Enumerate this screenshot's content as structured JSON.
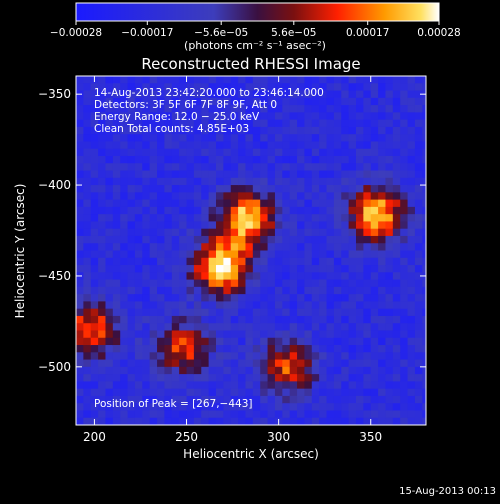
{
  "colorbar": {
    "tick_labels": [
      "−0.00028",
      "−0.00017",
      "−5.6e−05",
      "5.6e−05",
      "0.00017",
      "0.00028"
    ],
    "tick_values": [
      -0.00028,
      -0.00017,
      -5.6e-05,
      5.6e-05,
      0.00017,
      0.00028
    ],
    "range": [
      -0.00028,
      0.00028
    ],
    "units": "(photons cm⁻² s⁻¹ asec⁻²)"
  },
  "chart_data": {
    "type": "heatmap",
    "title": "Reconstructed RHESSI Image",
    "xlabel": "Heliocentric X (arcsec)",
    "ylabel": "Heliocentric Y (arcsec)",
    "xlim": [
      190,
      380
    ],
    "ylim": [
      -532,
      -340
    ],
    "x_ticks": [
      200,
      250,
      300,
      350
    ],
    "y_ticks": [
      -350,
      -400,
      -450,
      -500
    ],
    "x_tick_labels": [
      "200",
      "250",
      "300",
      "350"
    ],
    "y_tick_labels": [
      "−350",
      "−400",
      "−450",
      "−500"
    ],
    "sources": [
      {
        "x": 267,
        "y": -443,
        "peak": 0.00028
      },
      {
        "x": 281,
        "y": -416,
        "peak": 0.00024
      },
      {
        "x": 351,
        "y": -414,
        "peak": 0.00024
      },
      {
        "x": 303,
        "y": -498,
        "peak": 0.00013
      },
      {
        "x": 246,
        "y": -488,
        "peak": 0.00012
      },
      {
        "x": 196,
        "y": -478,
        "peak": 0.00016
      }
    ],
    "annotations": {
      "time_range": "14‑Aug‑2013 23:42:20.000 to 23:46:14.000",
      "detectors": "Detectors: 3F 5F 6F 7F 8F 9F, Att 0",
      "energy": "Energy Range: 12.0 − 25.0 keV",
      "clean": "Clean     Total counts: 4.85E+03",
      "peak": "Position of Peak = [267,−443]"
    },
    "timestamp": "15‑Aug‑2013 00:13"
  },
  "colors": {
    "background": "#000000",
    "axes": "#ffffff"
  }
}
